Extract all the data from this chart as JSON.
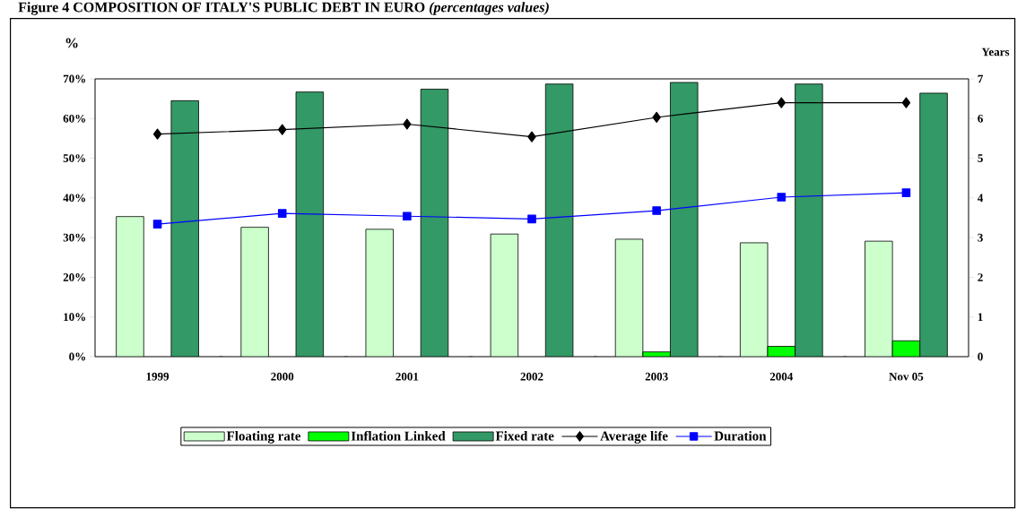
{
  "chart_data": {
    "type": "bar",
    "title": "Figure 4      COMPOSITION OF ITALY'S PUBLIC DEBT IN EURO *(percentages values)*",
    "ylabel": "%",
    "y2label": "Years",
    "categories": [
      "1999",
      "2000",
      "2001",
      "2002",
      "2003",
      "2004",
      "Nov 05"
    ],
    "series": [
      {
        "name": "Floating rate",
        "color": "#ccffcc",
        "values": [
          35.3,
          32.6,
          32.1,
          30.9,
          29.6,
          28.7,
          29.1
        ]
      },
      {
        "name": "Inflation Linked",
        "color": "#00ff00",
        "values": [
          null,
          null,
          null,
          null,
          1.2,
          2.6,
          4.0
        ]
      },
      {
        "name": "Fixed rate",
        "color": "#339966",
        "values": [
          64.5,
          66.7,
          67.4,
          68.7,
          69.1,
          68.7,
          66.4
        ]
      },
      {
        "name": "Average life",
        "type": "line",
        "axis": "y2",
        "marker": "diamond",
        "line_style": "solid",
        "color": "#000000",
        "values": [
          5.61,
          5.72,
          5.86,
          5.54,
          6.03,
          6.4,
          6.4
        ]
      },
      {
        "name": "Duration",
        "type": "line",
        "axis": "y2",
        "marker": "square",
        "line_style": "solid",
        "color": "#0000ff",
        "values": [
          3.34,
          3.61,
          3.54,
          3.47,
          3.68,
          4.02,
          4.13
        ]
      }
    ],
    "ylim": [
      0,
      70
    ],
    "yticks": [
      {
        "value": 0,
        "label": "0%"
      },
      {
        "value": 10,
        "label": "10%"
      },
      {
        "value": 20,
        "label": "20%"
      },
      {
        "value": 30,
        "label": "30%"
      },
      {
        "value": 40,
        "label": "40%"
      },
      {
        "value": 50,
        "label": "50%"
      },
      {
        "value": 60,
        "label": "60%"
      },
      {
        "value": 70,
        "label": "70%"
      }
    ],
    "y2lim": [
      0,
      7
    ],
    "y2ticks": [
      0,
      1,
      2,
      3,
      4,
      5,
      6,
      7
    ],
    "legend": "bottom"
  }
}
